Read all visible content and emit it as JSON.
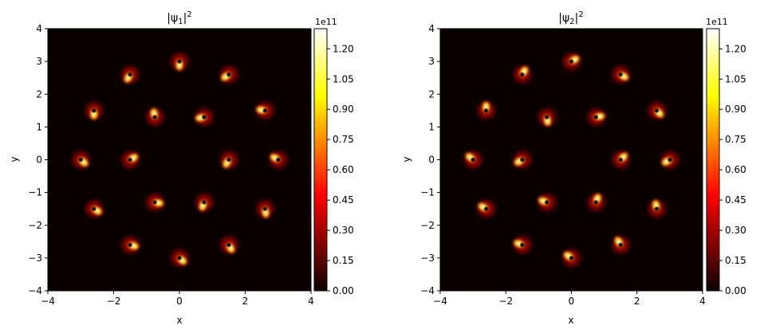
{
  "chart_data": [
    {
      "type": "heatmap",
      "title": "|ψ1|²",
      "xlabel": "x",
      "ylabel": "y",
      "xlim": [
        -4,
        4
      ],
      "ylim": [
        -4,
        4
      ],
      "xticks": [
        "−4",
        "−2",
        "0",
        "2",
        "4"
      ],
      "yticks": [
        "−4",
        "−3",
        "−2",
        "−1",
        "0",
        "1",
        "2",
        "3",
        "4"
      ],
      "grid": false,
      "colormap": "hot",
      "colorbar": {
        "exponent_label": "1e11",
        "min": 0,
        "max": 1.3,
        "ticks": [
          "0.00",
          "0.15",
          "0.30",
          "0.45",
          "0.60",
          "0.75",
          "0.90",
          "1.05",
          "1.20"
        ]
      },
      "peaks": [
        {
          "x": 0.0,
          "y": 3.0,
          "ang": -90
        },
        {
          "x": 1.5,
          "y": 2.6,
          "ang": -145
        },
        {
          "x": 2.6,
          "y": 1.5,
          "ang": 170
        },
        {
          "x": 3.0,
          "y": 0.0,
          "ang": 150
        },
        {
          "x": 2.6,
          "y": -1.5,
          "ang": -80
        },
        {
          "x": 1.5,
          "y": -2.6,
          "ang": -60
        },
        {
          "x": 0.0,
          "y": -3.0,
          "ang": -40
        },
        {
          "x": -1.5,
          "y": -2.6,
          "ang": -15
        },
        {
          "x": -2.6,
          "y": -1.5,
          "ang": -30
        },
        {
          "x": -3.0,
          "y": 0.0,
          "ang": -40
        },
        {
          "x": -2.6,
          "y": 1.5,
          "ang": -90
        },
        {
          "x": -1.5,
          "y": 2.6,
          "ang": -120
        },
        {
          "x": 0.75,
          "y": 1.3,
          "ang": -170
        },
        {
          "x": 1.5,
          "y": 0.0,
          "ang": -120
        },
        {
          "x": 0.75,
          "y": -1.3,
          "ang": -110
        },
        {
          "x": -0.75,
          "y": -1.3,
          "ang": -10
        },
        {
          "x": -1.5,
          "y": 0.0,
          "ang": 30
        },
        {
          "x": -0.75,
          "y": 1.3,
          "ang": 100
        }
      ]
    },
    {
      "type": "heatmap",
      "title": "|ψ2|²",
      "xlabel": "x",
      "ylabel": "y",
      "xlim": [
        -4,
        4
      ],
      "ylim": [
        -4,
        4
      ],
      "xticks": [
        "−4",
        "−2",
        "0",
        "2",
        "4"
      ],
      "yticks": [
        "−4",
        "−3",
        "−2",
        "−1",
        "0",
        "1",
        "2",
        "3",
        "4"
      ],
      "grid": false,
      "colormap": "hot",
      "colorbar": {
        "exponent_label": "1e11",
        "min": 0,
        "max": 1.3,
        "ticks": [
          "0.00",
          "0.15",
          "0.30",
          "0.45",
          "0.60",
          "0.75",
          "0.90",
          "1.05",
          "1.20"
        ]
      },
      "peaks": [
        {
          "x": 0.0,
          "y": 3.0,
          "ang": 30
        },
        {
          "x": 1.5,
          "y": 2.6,
          "ang": -30
        },
        {
          "x": 2.6,
          "y": 1.5,
          "ang": -45
        },
        {
          "x": 3.0,
          "y": 0.0,
          "ang": -150
        },
        {
          "x": 2.6,
          "y": -1.5,
          "ang": 100
        },
        {
          "x": 1.5,
          "y": -2.6,
          "ang": 120
        },
        {
          "x": 0.0,
          "y": -3.0,
          "ang": 145
        },
        {
          "x": -1.5,
          "y": -2.6,
          "ang": 160
        },
        {
          "x": -2.6,
          "y": -1.5,
          "ang": 150
        },
        {
          "x": -3.0,
          "y": 0.0,
          "ang": 140
        },
        {
          "x": -2.6,
          "y": 1.5,
          "ang": 90
        },
        {
          "x": -1.5,
          "y": 2.6,
          "ang": 60
        },
        {
          "x": 0.75,
          "y": 1.3,
          "ang": 10
        },
        {
          "x": 1.5,
          "y": 0.0,
          "ang": 45
        },
        {
          "x": 0.75,
          "y": -1.3,
          "ang": 70
        },
        {
          "x": -0.75,
          "y": -1.3,
          "ang": 160
        },
        {
          "x": -1.5,
          "y": 0.0,
          "ang": -150
        },
        {
          "x": -0.75,
          "y": 1.3,
          "ang": -80
        }
      ]
    }
  ]
}
